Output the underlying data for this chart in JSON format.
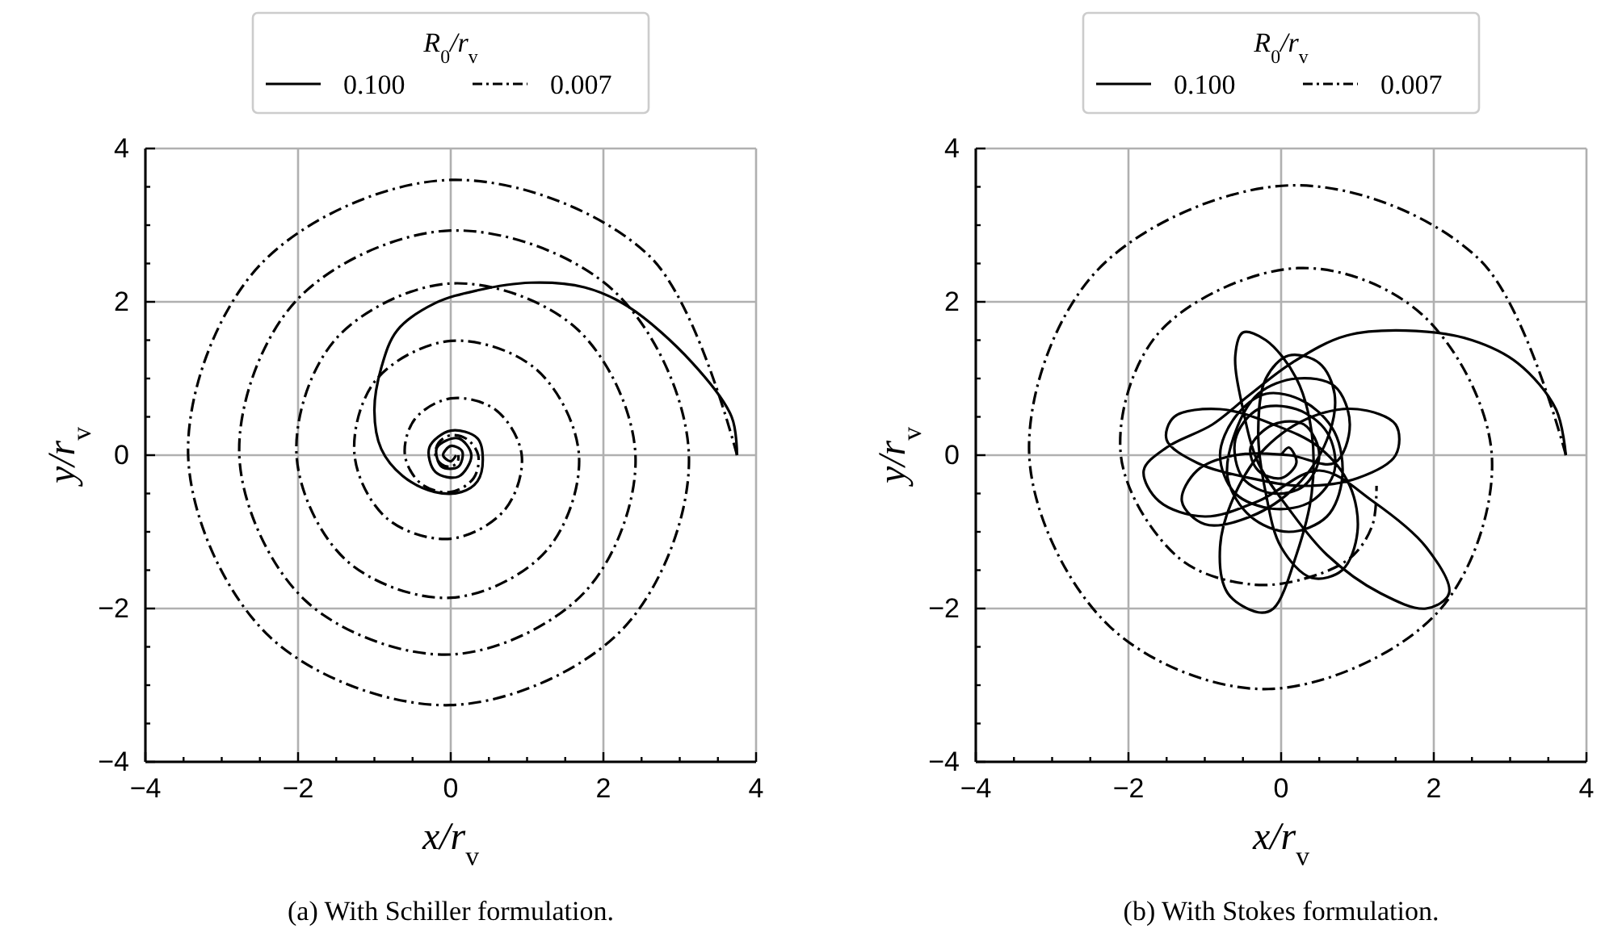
{
  "chart_data": [
    {
      "type": "line",
      "title": "(a) With Schiller formulation.",
      "xlabel": "x/r$_{v}$",
      "ylabel": "y/r$_{v}$",
      "legend_title": "R$_{0}$/r$_{v}$",
      "legend": "top",
      "grid": true,
      "xlim": [
        -4,
        4
      ],
      "ylim": [
        -4,
        4
      ],
      "xticks": [
        {
          "value": -4,
          "label": "−4"
        },
        {
          "value": -3.5,
          "label": null
        },
        {
          "value": -3,
          "label": null
        },
        {
          "value": -2.5,
          "label": null
        },
        {
          "value": -2,
          "label": "−2"
        },
        {
          "value": -1.5,
          "label": null
        },
        {
          "value": -1,
          "label": null
        },
        {
          "value": -0.5,
          "label": null
        },
        0,
        {
          "value": 0.5,
          "label": null
        },
        {
          "value": 1,
          "label": null
        },
        {
          "value": 1.5,
          "label": null
        },
        2,
        {
          "value": 2.5,
          "label": null
        },
        {
          "value": 3,
          "label": null
        },
        {
          "value": 3.5,
          "label": null
        },
        4
      ],
      "yticks": [
        {
          "value": -4,
          "label": "−4"
        },
        {
          "value": -3.5,
          "label": null
        },
        {
          "value": -3,
          "label": null
        },
        {
          "value": -2.5,
          "label": null
        },
        {
          "value": -2,
          "label": "−2"
        },
        {
          "value": -1.5,
          "label": null
        },
        {
          "value": -1,
          "label": null
        },
        {
          "value": -0.5,
          "label": null
        },
        0,
        {
          "value": 0.5,
          "label": null
        },
        {
          "value": 1,
          "label": null
        },
        {
          "value": 1.5,
          "label": null
        },
        2,
        {
          "value": 2.5,
          "label": null
        },
        {
          "value": 3,
          "label": null
        },
        {
          "value": 3.5,
          "label": null
        },
        4
      ],
      "series": [
        {
          "name": "0.100",
          "color": "#000000",
          "line_style": "solid",
          "x": [
            3.75,
            3.68,
            3.16,
            2.32,
            1.75,
            1.05,
            0.35,
            -0.21,
            -0.7,
            -0.91,
            -1.0,
            -0.91,
            -0.63,
            -0.21,
            0.14,
            0.35,
            0.42,
            0.35,
            0.0,
            -0.28,
            -0.2,
            0.1,
            0.27,
            0.1,
            -0.18,
            -0.12,
            0.1,
            0.15,
            0.0,
            -0.1,
            0.0,
            0.07
          ],
          "values": [
            0,
            0.5,
            1.21,
            1.94,
            2.19,
            2.25,
            2.15,
            1.98,
            1.63,
            1.14,
            0.58,
            0.08,
            -0.27,
            -0.48,
            -0.48,
            -0.34,
            -0.06,
            0.22,
            0.32,
            0.1,
            -0.22,
            -0.28,
            0.0,
            0.22,
            0.1,
            -0.15,
            -0.15,
            0.05,
            0.12,
            0.0,
            -0.08,
            0.0
          ]
        },
        {
          "name": "0.007",
          "color": "#000000",
          "line_style": "dashdot",
          "x": [
            3.75,
            2.6,
            0,
            -2.49,
            -3.44,
            -2.37,
            0,
            2.26,
            3.12,
            2.14,
            0,
            -2.02,
            -2.77,
            -1.9,
            0,
            1.77,
            2.42,
            1.65,
            0,
            -1.51,
            -2.02,
            -1.37,
            0,
            1.25,
            1.68,
            1.12,
            0,
            -0.98,
            -1.26,
            -0.83,
            0,
            0.71,
            0.93,
            0.59,
            0,
            -0.47,
            -0.6,
            -0.38,
            0,
            0.3,
            0.36,
            0.21,
            0,
            -0.16,
            -0.2,
            -0.12,
            0,
            0.09,
            0.1
          ],
          "values": [
            0,
            2.6,
            3.59,
            2.49,
            0,
            -2.37,
            -3.26,
            -2.26,
            0,
            2.14,
            2.93,
            2.02,
            0,
            -1.9,
            -2.6,
            -1.77,
            0,
            1.65,
            2.24,
            1.51,
            0,
            -1.37,
            -1.86,
            -1.25,
            0,
            1.12,
            1.49,
            0.98,
            0,
            -0.83,
            -1.09,
            -0.71,
            0,
            0.59,
            0.74,
            0.47,
            0,
            -0.38,
            -0.48,
            -0.3,
            0,
            0.21,
            0.26,
            0.16,
            0,
            -0.12,
            -0.15,
            -0.09,
            0
          ]
        }
      ]
    },
    {
      "type": "line",
      "title": "(b) With Stokes formulation.",
      "xlabel": "x/r$_{v}$",
      "ylabel": "y/r$_{v}$",
      "legend_title": "R$_{0}$/r$_{v}$",
      "legend": "top",
      "grid": true,
      "xlim": [
        -4,
        4
      ],
      "ylim": [
        -4,
        4
      ],
      "xticks": [
        {
          "value": -4,
          "label": "−4"
        },
        {
          "value": -3.5,
          "label": null
        },
        {
          "value": -3,
          "label": null
        },
        {
          "value": -2.5,
          "label": null
        },
        {
          "value": -2,
          "label": "−2"
        },
        {
          "value": -1.5,
          "label": null
        },
        {
          "value": -1,
          "label": null
        },
        {
          "value": -0.5,
          "label": null
        },
        0,
        {
          "value": 0.5,
          "label": null
        },
        {
          "value": 1,
          "label": null
        },
        {
          "value": 1.5,
          "label": null
        },
        2,
        {
          "value": 2.5,
          "label": null
        },
        {
          "value": 3,
          "label": null
        },
        {
          "value": 3.5,
          "label": null
        },
        4
      ],
      "yticks": [
        {
          "value": -4,
          "label": "−4"
        },
        {
          "value": -3.5,
          "label": null
        },
        {
          "value": -3,
          "label": null
        },
        {
          "value": -2.5,
          "label": null
        },
        {
          "value": -2,
          "label": "−2"
        },
        {
          "value": -1.5,
          "label": null
        },
        {
          "value": -1,
          "label": null
        },
        {
          "value": -0.5,
          "label": null
        },
        0,
        {
          "value": 0.5,
          "label": null
        },
        {
          "value": 1,
          "label": null
        },
        {
          "value": 1.5,
          "label": null
        },
        2,
        {
          "value": 2.5,
          "label": null
        },
        {
          "value": 3,
          "label": null
        },
        {
          "value": 3.5,
          "label": null
        },
        4
      ],
      "series": [
        {
          "name": "0.100",
          "color": "#000000",
          "line_style": "solid",
          "x": [
            3.73,
            3.6,
            3.1,
            2.5,
            1.77,
            0.86,
            0.15,
            -0.41,
            -0.9,
            -1.5,
            -1.8,
            -1.6,
            -1.0,
            -0.3,
            0.5,
            1.2,
            1.9,
            2.2,
            1.9,
            1.3,
            0.6,
            0.1,
            -0.3,
            -0.5,
            -0.6,
            -0.5,
            -0.2,
            0.2,
            0.4,
            0.4,
            0.2,
            -0.1,
            -0.3,
            -0.7,
            -0.8,
            -0.6,
            -0.2,
            0.4,
            1.0,
            1.5,
            1.5,
            1.0,
            0.3,
            -0.4,
            -1.1,
            -1.5,
            -1.4,
            -0.8,
            -0.1,
            0.5,
            0.9,
            1.0,
            0.8,
            0.4,
            0.0,
            -0.2,
            -0.3,
            -0.2,
            0.1,
            0.5,
            0.7,
            0.6,
            0.2,
            -0.4,
            -1.0,
            -1.3,
            -1.1,
            -0.6,
            0.1,
            0.7,
            0.9,
            0.7,
            0.2,
            -0.3,
            -0.6,
            -0.7,
            -0.4,
            0.1,
            0.6,
            0.8,
            0.7,
            0.3,
            -0.2,
            -0.6,
            -0.8,
            -0.6,
            -0.1,
            0.4,
            0.7,
            0.6,
            0.2,
            -0.3,
            -0.6,
            -0.5,
            -0.1,
            0.3,
            0.5,
            0.3,
            -0.1,
            -0.4,
            -0.3,
            0.0,
            0.2,
            0.1,
            0.0
          ],
          "values": [
            0,
            0.6,
            1.2,
            1.5,
            1.62,
            1.56,
            1.21,
            0.79,
            0.4,
            0.1,
            -0.2,
            -0.6,
            -0.8,
            -0.6,
            -0.2,
            -0.6,
            -1.2,
            -1.8,
            -2.0,
            -1.8,
            -1.3,
            -0.7,
            -0.1,
            0.6,
            1.3,
            1.6,
            1.5,
            1.0,
            0.3,
            -0.5,
            -1.3,
            -2.0,
            -2.05,
            -1.8,
            -1.2,
            -0.5,
            0.1,
            0.5,
            0.6,
            0.4,
            0.0,
            -0.3,
            -0.4,
            -0.3,
            -0.1,
            0.2,
            0.5,
            0.6,
            0.4,
            0.1,
            -0.4,
            -1.0,
            -1.5,
            -1.6,
            -1.2,
            -0.5,
            0.3,
            1.0,
            1.3,
            1.2,
            0.8,
            0.2,
            -0.4,
            -0.8,
            -0.9,
            -0.6,
            -0.2,
            0.0,
            0.0,
            -0.1,
            0.4,
            0.9,
            1.0,
            0.8,
            0.3,
            -0.3,
            -0.8,
            -1.0,
            -0.8,
            -0.3,
            0.3,
            0.7,
            0.8,
            0.5,
            0.0,
            -0.5,
            -0.7,
            -0.6,
            -0.2,
            0.3,
            0.6,
            0.6,
            0.2,
            -0.3,
            -0.5,
            -0.4,
            0.0,
            0.4,
            0.4,
            0.1,
            -0.2,
            -0.3,
            -0.1,
            0.1,
            0.0
          ]
        },
        {
          "name": "0.007",
          "color": "#000000",
          "line_style": "dashdot",
          "x": [
            3.73,
            2.6,
            0.15,
            -2.41,
            -3.3,
            -2.24,
            -0.16,
            2.05,
            2.76,
            1.84,
            0.22,
            -1.6,
            -2.1,
            -1.34,
            -0.34,
            0.5,
            0.95,
            1.2,
            1.25
          ],
          "values": [
            0,
            2.55,
            3.52,
            2.41,
            0,
            -2.24,
            -3.05,
            -2.05,
            0,
            1.84,
            2.44,
            1.6,
            0,
            -1.34,
            -1.69,
            -1.55,
            -1.3,
            -0.9,
            -0.4
          ]
        }
      ]
    }
  ]
}
